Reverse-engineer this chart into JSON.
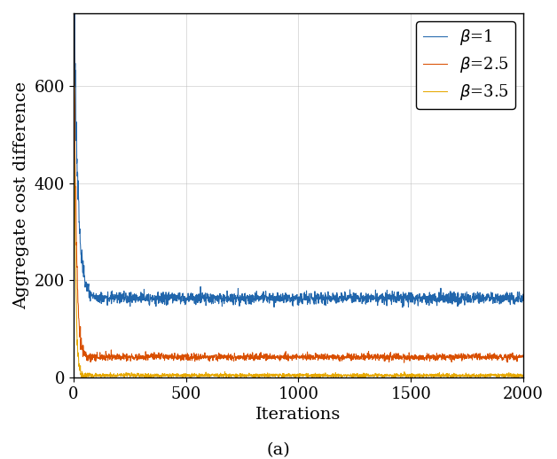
{
  "title": "(a)",
  "xlabel": "Iterations",
  "ylabel": "Aggregate cost difference",
  "xlim": [
    0,
    2000
  ],
  "ylim": [
    0,
    750
  ],
  "yticks": [
    0,
    200,
    400,
    600
  ],
  "xticks": [
    0,
    500,
    1000,
    1500,
    2000
  ],
  "curves": [
    {
      "beta_label": "1",
      "color": "#2166ac",
      "start_val": 750,
      "steady_val": 163,
      "fast_decay": 0.06,
      "slow_decay": 0.0004,
      "noise_base": 6.0,
      "noise_decay": 0.008,
      "seed": 1
    },
    {
      "beta_label": "2.5",
      "color": "#d94f00",
      "start_val": 750,
      "steady_val": 42,
      "fast_decay": 0.1,
      "slow_decay": 0.0003,
      "noise_base": 3.5,
      "noise_decay": 0.012,
      "seed": 2
    },
    {
      "beta_label": "3.5",
      "color": "#e6a800",
      "start_val": 750,
      "steady_val": 4,
      "fast_decay": 0.15,
      "slow_decay": 0.0002,
      "noise_base": 2.0,
      "noise_decay": 0.02,
      "seed": 3
    }
  ],
  "legend_loc": "upper right",
  "label_fontsize": 14,
  "tick_fontsize": 13,
  "legend_fontsize": 13,
  "title_fontsize": 14,
  "figsize": [
    6.28,
    5.18
  ],
  "dpi": 100
}
